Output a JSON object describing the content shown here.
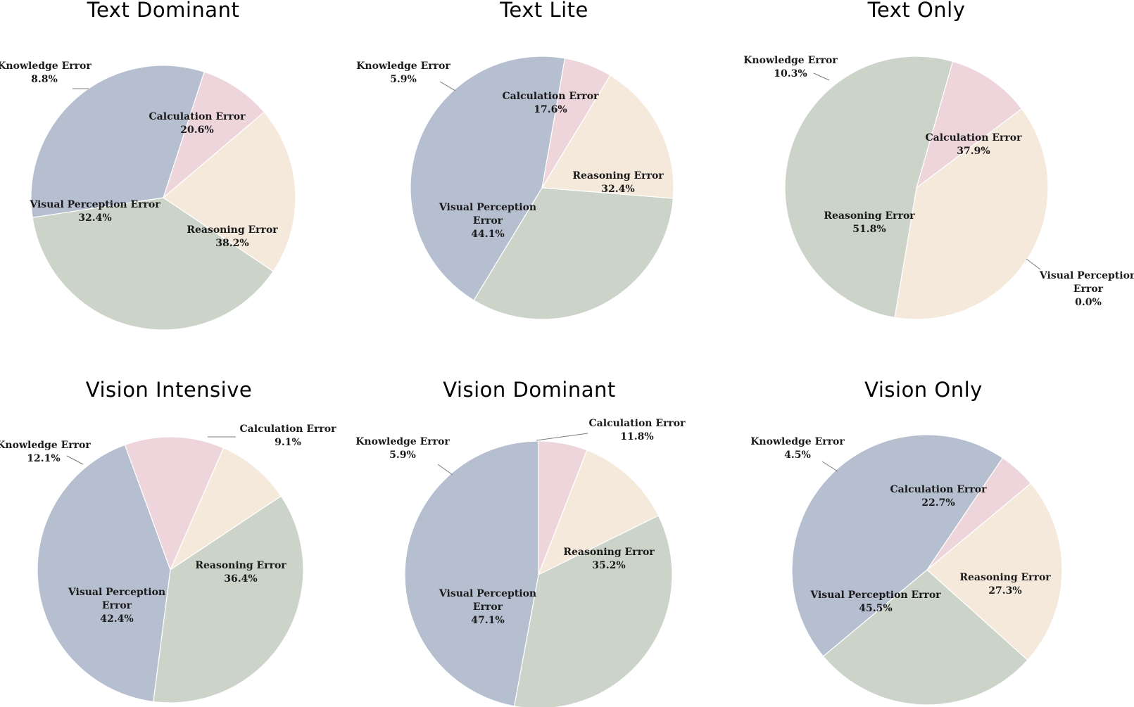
{
  "colors": {
    "Knowledge Error": "#eed5db",
    "Calculation Error": "#f5e9dc",
    "Reasoning Error": "#ccd3c9",
    "Visual Perception Error": "#b5bfd0"
  },
  "chart_data": [
    {
      "type": "pie",
      "title": "Text Dominant",
      "slices": [
        {
          "label": "Knowledge Error",
          "lines": [
            "Knowledge Error",
            "8.8%"
          ],
          "value": 8.8
        },
        {
          "label": "Calculation Error",
          "lines": [
            "Calculation Error",
            "20.6%"
          ],
          "value": 20.6
        },
        {
          "label": "Reasoning Error",
          "lines": [
            "Reasoning Error",
            "38.2%"
          ],
          "value": 38.2
        },
        {
          "label": "Visual Perception Error",
          "lines": [
            "Visual Perception Error",
            "32.4%"
          ],
          "value": 32.4
        }
      ]
    },
    {
      "type": "pie",
      "title": "Text Lite",
      "slices": [
        {
          "label": "Knowledge Error",
          "lines": [
            "Knowledge Error",
            "5.9%"
          ],
          "value": 5.9
        },
        {
          "label": "Calculation Error",
          "lines": [
            "Calculation Error",
            "17.6%"
          ],
          "value": 17.6
        },
        {
          "label": "Reasoning Error",
          "lines": [
            "Reasoning Error",
            "32.4%"
          ],
          "value": 32.4
        },
        {
          "label": "Visual Perception Error",
          "lines": [
            "Visual Perception",
            "Error",
            "44.1%"
          ],
          "value": 44.1
        }
      ]
    },
    {
      "type": "pie",
      "title": "Text Only",
      "slices": [
        {
          "label": "Knowledge Error",
          "lines": [
            "Knowledge Error",
            "10.3%"
          ],
          "value": 10.3
        },
        {
          "label": "Calculation Error",
          "lines": [
            "Calculation Error",
            "37.9%"
          ],
          "value": 37.9
        },
        {
          "label": "Visual Perception Error",
          "lines": [
            "Visual Perception",
            "Error",
            "0.0%"
          ],
          "value": 0.0
        },
        {
          "label": "Reasoning Error",
          "lines": [
            "Reasoning Error",
            "51.8%"
          ],
          "value": 51.8
        }
      ]
    },
    {
      "type": "pie",
      "title": "Vision Intensive",
      "slices": [
        {
          "label": "Knowledge Error",
          "lines": [
            "Knowledge Error",
            "12.1%"
          ],
          "value": 12.1
        },
        {
          "label": "Calculation Error",
          "lines": [
            "Calculation Error",
            "9.1%"
          ],
          "value": 9.1
        },
        {
          "label": "Reasoning Error",
          "lines": [
            "Reasoning Error",
            "36.4%"
          ],
          "value": 36.4
        },
        {
          "label": "Visual Perception Error",
          "lines": [
            "Visual Perception",
            "Error",
            "42.4%"
          ],
          "value": 42.4
        }
      ]
    },
    {
      "type": "pie",
      "title": "Vision Dominant",
      "slices": [
        {
          "label": "Knowledge Error",
          "lines": [
            "Knowledge Error",
            "5.9%"
          ],
          "value": 5.9
        },
        {
          "label": "Calculation Error",
          "lines": [
            "Calculation Error",
            "11.8%"
          ],
          "value": 11.8
        },
        {
          "label": "Reasoning Error",
          "lines": [
            "Reasoning Error",
            "35.2%"
          ],
          "value": 35.2
        },
        {
          "label": "Visual Perception Error",
          "lines": [
            "Visual Perception",
            "Error",
            "47.1%"
          ],
          "value": 47.1
        }
      ]
    },
    {
      "type": "pie",
      "title": "Vision Only",
      "slices": [
        {
          "label": "Knowledge Error",
          "lines": [
            "Knowledge Error",
            "4.5%"
          ],
          "value": 4.5
        },
        {
          "label": "Calculation Error",
          "lines": [
            "Calculation Error",
            "22.7%"
          ],
          "value": 22.7
        },
        {
          "label": "Reasoning Error",
          "lines": [
            "Reasoning Error",
            "27.3%"
          ],
          "value": 27.3
        },
        {
          "label": "Visual Perception Error",
          "lines": [
            "Visual Perception Error",
            "45.5%"
          ],
          "value": 45.5
        }
      ]
    }
  ]
}
